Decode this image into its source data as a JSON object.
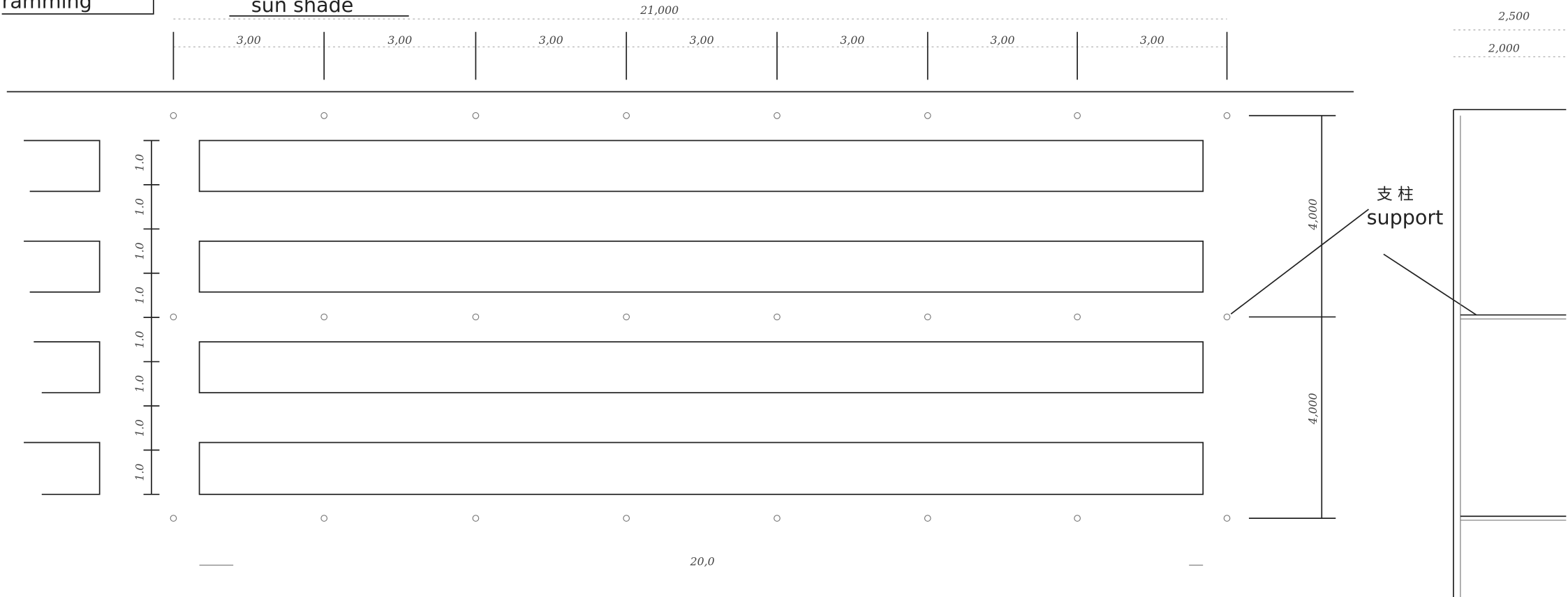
{
  "labels": {
    "framing": "ramming",
    "sun_shade": "sun shade",
    "support_cn": "支 柱",
    "support": "support"
  },
  "dimensions": {
    "total_width": "21,000",
    "bays": [
      "3,00",
      "3,00",
      "3,00",
      "3,00",
      "3,00",
      "3,00",
      "3,00"
    ],
    "right_top": [
      "2,500",
      "2,000"
    ],
    "vertical_spans": [
      "4,000",
      "4,000"
    ],
    "row_spacing": [
      "1.0",
      "1.0",
      "1.0",
      "1.0",
      "1.0",
      "1.0",
      "1.0",
      "1.0"
    ],
    "bottom": "20,0"
  }
}
